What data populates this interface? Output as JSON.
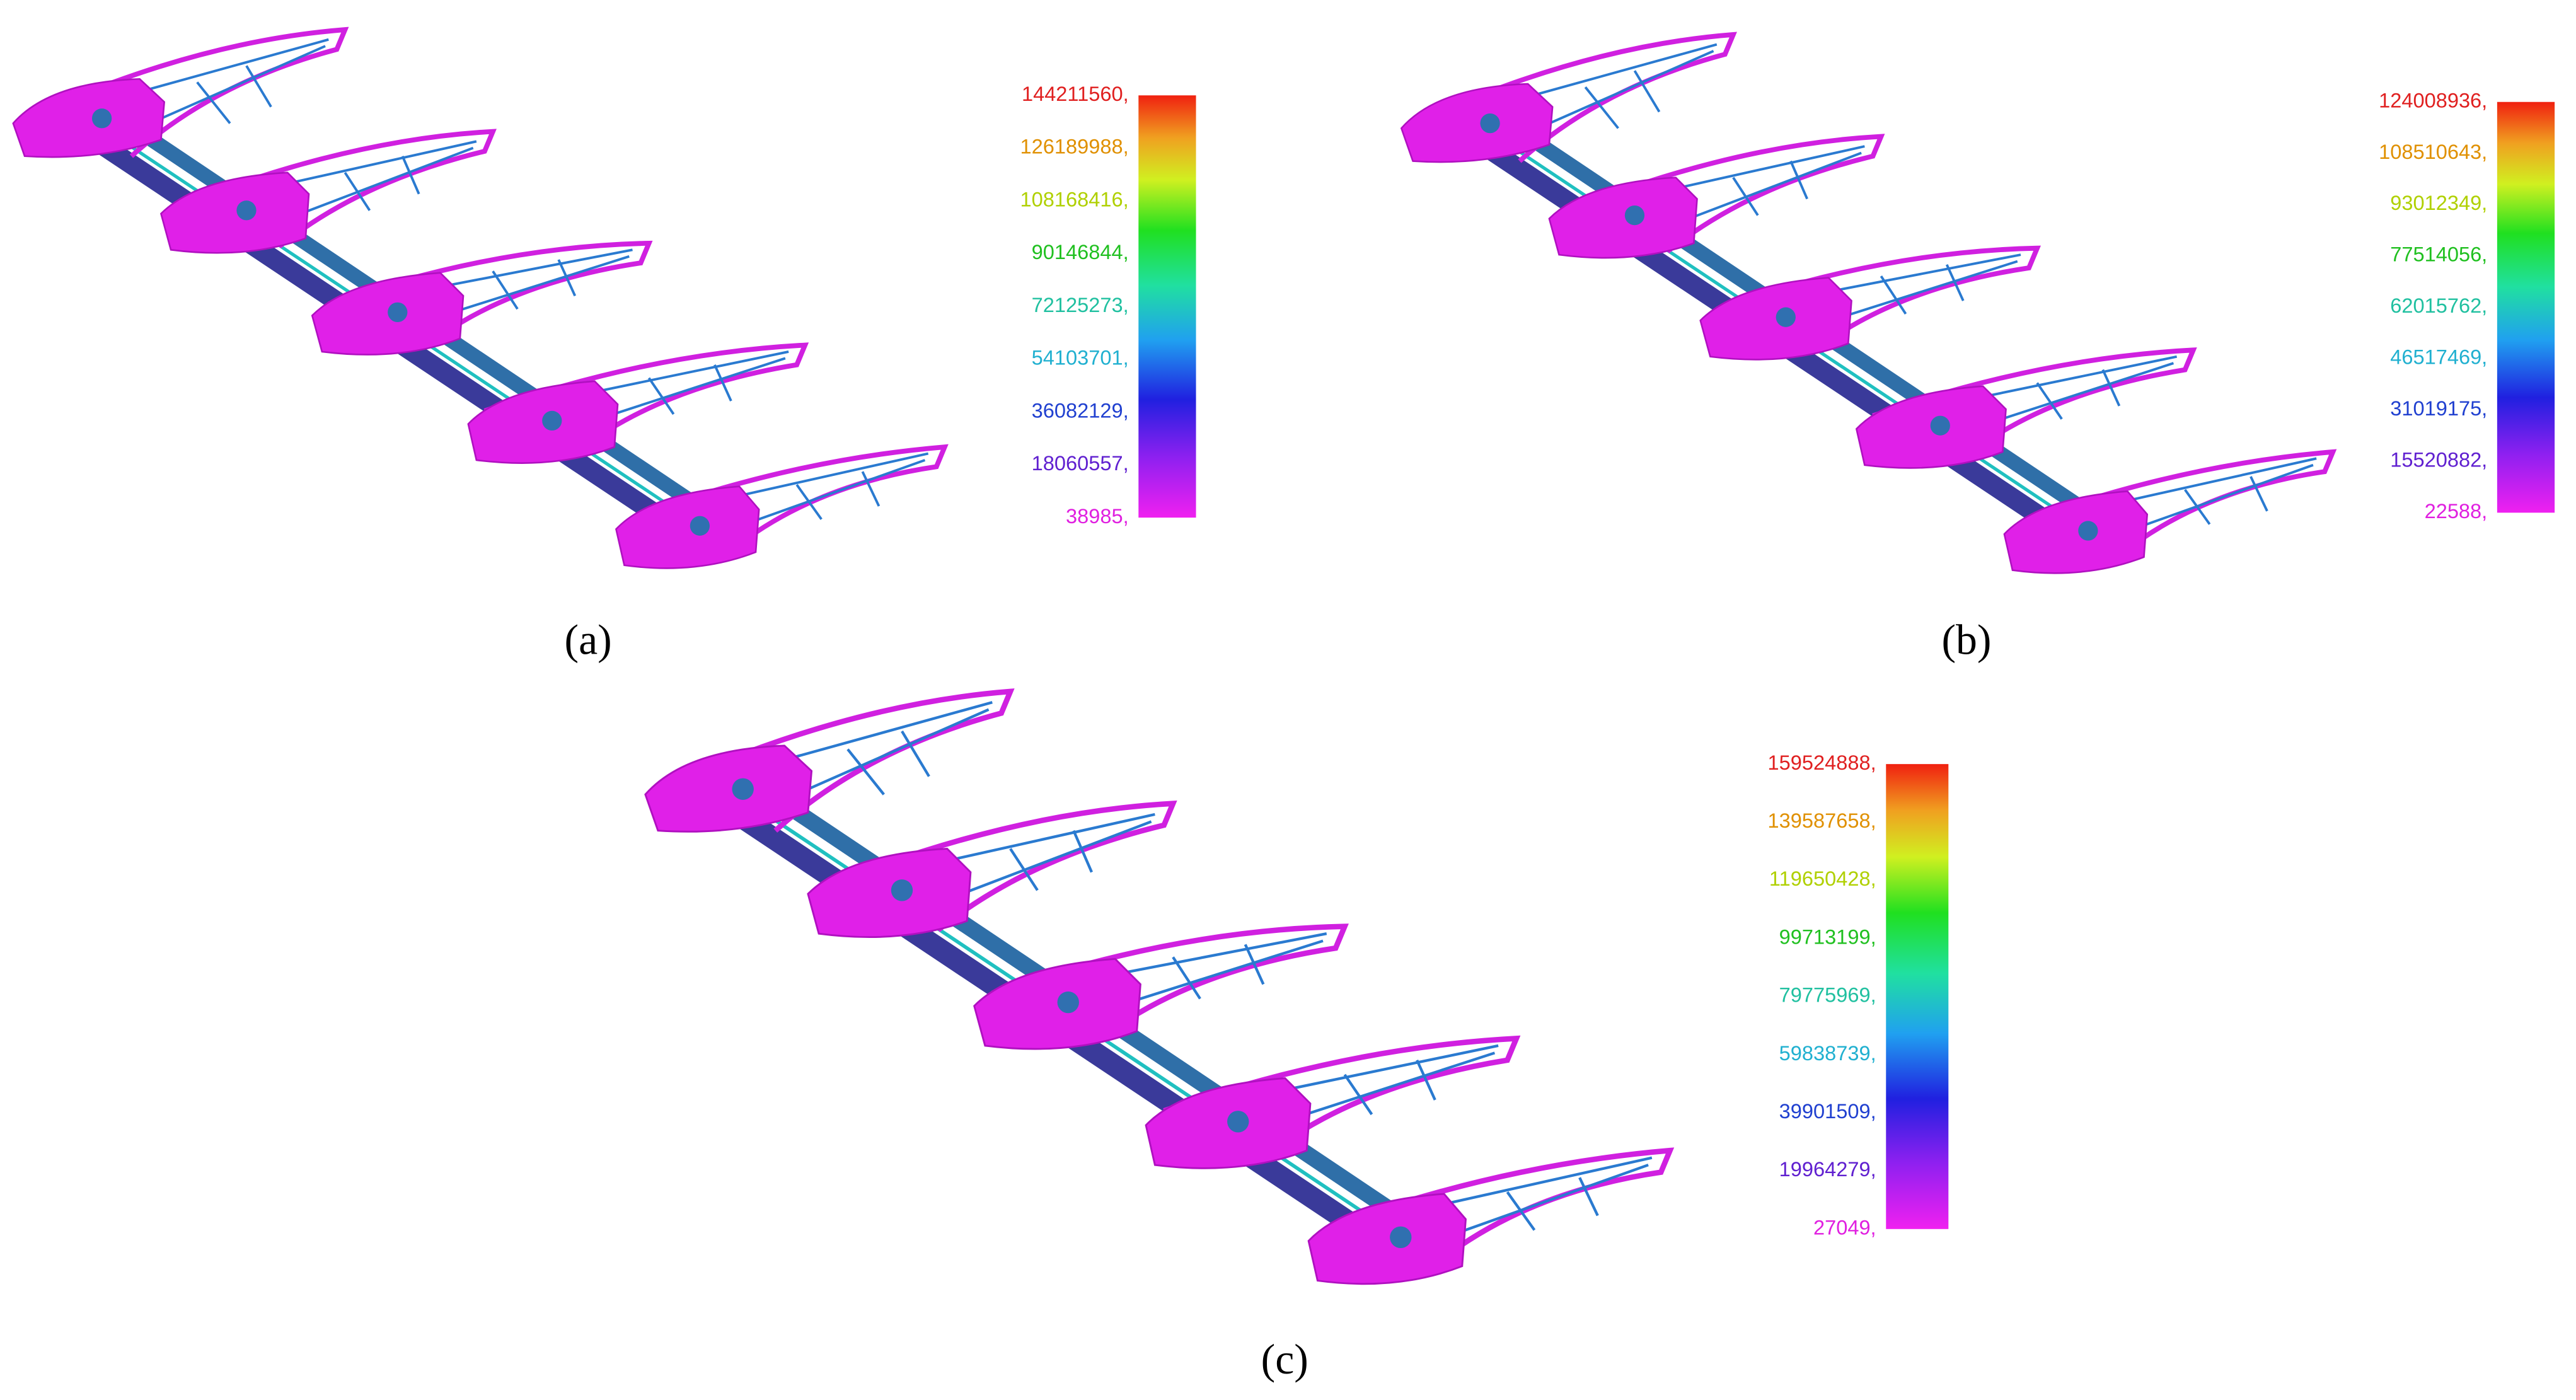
{
  "panels": [
    {
      "label": "(a)",
      "legend": [
        "144211560,",
        "126189988,",
        "108168416,",
        "90146844,",
        "72125273,",
        "54103701,",
        "36082129,",
        "18060557,",
        "38985,"
      ]
    },
    {
      "label": "(b)",
      "legend": [
        "124008936,",
        "108510643,",
        "93012349,",
        "77514056,",
        "62015762,",
        "46517469,",
        "31019175,",
        "15520882,",
        "22588,"
      ]
    },
    {
      "label": "(c)",
      "legend": [
        "159524888,",
        "139587658,",
        "119650428,",
        "99713199,",
        "79775969,",
        "59838739,",
        "39901509,",
        "19964279,",
        "27049,"
      ]
    }
  ]
}
